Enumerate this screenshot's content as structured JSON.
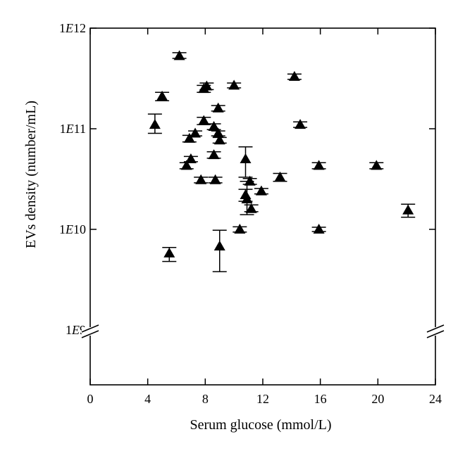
{
  "chart_data": {
    "type": "scatter",
    "xlabel": "Serum glucose (mmol/L)",
    "ylabel": "EVs density (number/mL)",
    "x_ticks": [
      0,
      4,
      8,
      12,
      16,
      20,
      24
    ],
    "xlim": [
      0,
      24
    ],
    "y_scale": "log",
    "y_ticks": [
      {
        "value": 1000000000.0,
        "label": "1E9"
      },
      {
        "value": 10000000000.0,
        "label": "1E10"
      },
      {
        "value": 100000000000.0,
        "label": "1E11"
      },
      {
        "value": 1000000000000.0,
        "label": "1E12"
      }
    ],
    "ylim_log10": [
      8.0,
      12.0
    ],
    "axis_break_at": 1000000000.0,
    "marker": "filled-triangle",
    "error_bars": true,
    "points": [
      {
        "x": 4.5,
        "y": 110000000000.0,
        "lo": 90000000000.0,
        "hi": 140000000000.0
      },
      {
        "x": 5.0,
        "y": 210000000000.0,
        "lo": 190000000000.0,
        "hi": 230000000000.0
      },
      {
        "x": 5.5,
        "y": 5800000000.0,
        "lo": 4800000000.0,
        "hi": 6600000000.0
      },
      {
        "x": 6.2,
        "y": 530000000000.0,
        "lo": 500000000000.0,
        "hi": 570000000000.0
      },
      {
        "x": 6.7,
        "y": 43000000000.0,
        "lo": 40000000000.0,
        "hi": 46000000000.0
      },
      {
        "x": 6.9,
        "y": 80000000000.0,
        "lo": 74000000000.0,
        "hi": 86000000000.0
      },
      {
        "x": 7.0,
        "y": 50000000000.0,
        "lo": 47000000000.0,
        "hi": 53000000000.0
      },
      {
        "x": 7.3,
        "y": 90000000000.0,
        "lo": 85000000000.0,
        "hi": 95000000000.0
      },
      {
        "x": 7.7,
        "y": 31000000000.0,
        "lo": 29000000000.0,
        "hi": 33000000000.0
      },
      {
        "x": 7.9,
        "y": 120000000000.0,
        "lo": 110000000000.0,
        "hi": 130000000000.0
      },
      {
        "x": 7.9,
        "y": 250000000000.0,
        "lo": 230000000000.0,
        "hi": 270000000000.0
      },
      {
        "x": 8.1,
        "y": 265000000000.0,
        "lo": 245000000000.0,
        "hi": 285000000000.0
      },
      {
        "x": 8.6,
        "y": 105000000000.0,
        "lo": 98000000000.0,
        "hi": 112000000000.0
      },
      {
        "x": 8.6,
        "y": 55000000000.0,
        "lo": 51000000000.0,
        "hi": 59000000000.0
      },
      {
        "x": 8.7,
        "y": 31000000000.0,
        "lo": 29000000000.0,
        "hi": 33000000000.0
      },
      {
        "x": 8.9,
        "y": 160000000000.0,
        "lo": 150000000000.0,
        "hi": 170000000000.0
      },
      {
        "x": 8.9,
        "y": 90000000000.0,
        "lo": 85000000000.0,
        "hi": 95000000000.0
      },
      {
        "x": 9.0,
        "y": 77000000000.0,
        "lo": 72000000000.0,
        "hi": 82000000000.0
      },
      {
        "x": 9.0,
        "y": 6800000000.0,
        "lo": 3800000000.0,
        "hi": 9800000000.0
      },
      {
        "x": 10.0,
        "y": 270000000000.0,
        "lo": 255000000000.0,
        "hi": 285000000000.0
      },
      {
        "x": 10.4,
        "y": 10000000000.0,
        "lo": 9400000000.0,
        "hi": 10600000000.0
      },
      {
        "x": 10.8,
        "y": 50000000000.0,
        "lo": 33000000000.0,
        "hi": 66000000000.0
      },
      {
        "x": 10.8,
        "y": 22000000000.0,
        "lo": 19000000000.0,
        "hi": 25000000000.0
      },
      {
        "x": 10.9,
        "y": 20000000000.0,
        "lo": 14000000000.0,
        "hi": 30000000000.0
      },
      {
        "x": 11.1,
        "y": 30000000000.0,
        "lo": 28000000000.0,
        "hi": 32000000000.0
      },
      {
        "x": 11.2,
        "y": 16000000000.0,
        "lo": 15000000000.0,
        "hi": 17500000000.0
      },
      {
        "x": 11.9,
        "y": 24000000000.0,
        "lo": 22500000000.0,
        "hi": 25500000000.0
      },
      {
        "x": 13.2,
        "y": 33000000000.0,
        "lo": 30000000000.0,
        "hi": 36000000000.0
      },
      {
        "x": 14.2,
        "y": 330000000000.0,
        "lo": 310000000000.0,
        "hi": 350000000000.0
      },
      {
        "x": 14.6,
        "y": 110000000000.0,
        "lo": 103000000000.0,
        "hi": 117000000000.0
      },
      {
        "x": 15.9,
        "y": 43000000000.0,
        "lo": 40000000000.0,
        "hi": 46000000000.0
      },
      {
        "x": 15.9,
        "y": 10000000000.0,
        "lo": 9500000000.0,
        "hi": 10500000000.0
      },
      {
        "x": 19.9,
        "y": 43000000000.0,
        "lo": 40000000000.0,
        "hi": 46000000000.0
      },
      {
        "x": 22.1,
        "y": 15500000000.0,
        "lo": 13200000000.0,
        "hi": 17800000000.0
      }
    ]
  }
}
